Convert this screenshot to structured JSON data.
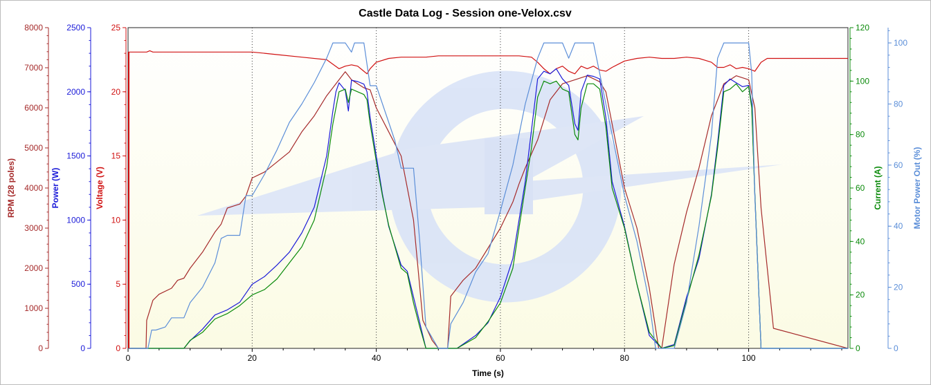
{
  "chart_data": {
    "type": "line",
    "title": "Castle Data Log - Session one-Velox.csv",
    "xlabel": "Time (s)",
    "xlim": [
      0,
      116
    ],
    "xticks": [
      0,
      20,
      40,
      60,
      80,
      100
    ],
    "grid": "vertical dotted",
    "colors": {
      "rpm": "#a52a2a",
      "power": "#1a1ad8",
      "voltage": "#d01010",
      "current": "#0a8a0a",
      "motor_out": "#5b8ed8",
      "plot_bg": "#fbfbe4"
    },
    "axes": [
      {
        "key": "rpm",
        "label": "RPM (28 poles)",
        "side": "left",
        "lim": [
          0,
          8000
        ],
        "ticks": [
          0,
          1000,
          2000,
          3000,
          4000,
          5000,
          6000,
          7000,
          8000
        ]
      },
      {
        "key": "power",
        "label": "Power (W)",
        "side": "left",
        "lim": [
          0,
          2500
        ],
        "ticks": [
          0,
          500,
          1000,
          1500,
          2000,
          2500
        ]
      },
      {
        "key": "voltage",
        "label": "Voltage (V)",
        "side": "left",
        "lim": [
          0,
          25
        ],
        "ticks": [
          0,
          5,
          10,
          15,
          20,
          25
        ]
      },
      {
        "key": "current",
        "label": "Current (A)",
        "side": "right",
        "lim": [
          0,
          120
        ],
        "ticks": [
          0,
          20,
          40,
          60,
          80,
          100,
          120
        ]
      },
      {
        "key": "motor_out",
        "label": "Motor Power Out (%)",
        "side": "right",
        "lim": [
          0,
          105
        ],
        "ticks": [
          0,
          20,
          40,
          60,
          80,
          100
        ]
      }
    ],
    "series": [
      {
        "key": "voltage",
        "axis": "voltage",
        "x": [
          0,
          3,
          3.5,
          4,
          10,
          20,
          22,
          24,
          28,
          32,
          34,
          35,
          36,
          37,
          38,
          38.5,
          39,
          40,
          42,
          44,
          46,
          48,
          50,
          55,
          60,
          63,
          65,
          66,
          67,
          68,
          69,
          70,
          71,
          72,
          73,
          74,
          75,
          76,
          77,
          78,
          80,
          82,
          84,
          86,
          88,
          90,
          92,
          94,
          95,
          96,
          97,
          98,
          99,
          100,
          101,
          102,
          103,
          104,
          106,
          110,
          116
        ],
        "y": [
          23.1,
          23.1,
          23.2,
          23.1,
          23.1,
          23.1,
          23.0,
          22.9,
          22.7,
          22.5,
          21.8,
          22.0,
          22.1,
          22.0,
          21.6,
          21.4,
          21.8,
          22.3,
          22.6,
          22.7,
          22.7,
          22.7,
          22.8,
          22.8,
          22.8,
          22.8,
          22.7,
          22.3,
          21.8,
          21.4,
          21.8,
          22.0,
          21.6,
          21.4,
          22.0,
          21.8,
          22.0,
          21.7,
          21.6,
          21.9,
          22.4,
          22.6,
          22.7,
          22.6,
          22.6,
          22.7,
          22.6,
          22.3,
          21.9,
          21.9,
          22.1,
          21.8,
          21.9,
          21.8,
          21.6,
          22.3,
          22.6,
          22.6,
          22.6,
          22.6,
          22.6
        ]
      },
      {
        "key": "rpm",
        "axis": "rpm",
        "x": [
          0,
          2.9,
          3.0,
          4.0,
          5.0,
          7.0,
          8.0,
          9.0,
          10.0,
          12.0,
          14.0,
          15.0,
          16.0,
          17.0,
          18.0,
          19.0,
          20.0,
          22.0,
          24.0,
          26.0,
          28.0,
          30.0,
          32.0,
          34.0,
          35.0,
          36.0,
          37.0,
          38.0,
          39.0,
          40.0,
          42.0,
          44.0,
          46.0,
          47.5,
          49.0,
          50.0,
          51.5,
          52.0,
          54.0,
          56.0,
          58.0,
          60.0,
          62.0,
          63.0,
          64.0,
          66.0,
          68.0,
          70.0,
          72.0,
          74.0,
          76.0,
          77.0,
          78.0,
          80.0,
          82.0,
          84.0,
          85.5,
          86.0,
          88.0,
          90.0,
          92.0,
          94.0,
          96.0,
          98.0,
          100.0,
          101.0,
          102.0,
          104.0,
          116.0
        ],
        "y": [
          0,
          0,
          700,
          1200,
          1350,
          1500,
          1700,
          1750,
          2000,
          2400,
          2900,
          3100,
          3500,
          3550,
          3600,
          3800,
          4250,
          4400,
          4650,
          4900,
          5400,
          5800,
          6300,
          6700,
          6900,
          6700,
          6600,
          6500,
          6450,
          6000,
          5400,
          4800,
          3200,
          700,
          200,
          0,
          0,
          1300,
          1700,
          2000,
          2500,
          3000,
          3650,
          4100,
          4500,
          5200,
          6200,
          6600,
          6700,
          6800,
          6650,
          6400,
          5600,
          4000,
          3000,
          1500,
          0,
          0,
          2100,
          3400,
          4500,
          5800,
          6600,
          6800,
          6700,
          6000,
          3500,
          500,
          0
        ]
      },
      {
        "key": "power",
        "axis": "power",
        "x": [
          0,
          9,
          10,
          12,
          14,
          16,
          18,
          20,
          22,
          24,
          26,
          28,
          30,
          32,
          33,
          33.5,
          34,
          35,
          35.5,
          36,
          37,
          38,
          38.5,
          39,
          40,
          41,
          42,
          44,
          45,
          46,
          47,
          48,
          50,
          53,
          56,
          58,
          60,
          62,
          63,
          64,
          65,
          66,
          67,
          68,
          69,
          70,
          71,
          72,
          72.5,
          73,
          74,
          75,
          76,
          77,
          78,
          80,
          82,
          84,
          86,
          88,
          90,
          92,
          94,
          95,
          96,
          97,
          98,
          99,
          100,
          100.5,
          101,
          102,
          103,
          116
        ],
        "y": [
          0,
          0,
          60,
          150,
          260,
          300,
          360,
          500,
          560,
          650,
          750,
          900,
          1100,
          1500,
          1850,
          2000,
          2070,
          2010,
          1850,
          2090,
          2080,
          2060,
          2000,
          1800,
          1500,
          1200,
          950,
          650,
          600,
          400,
          200,
          0,
          0,
          0,
          100,
          200,
          400,
          700,
          1000,
          1300,
          1700,
          2100,
          2160,
          2140,
          2180,
          2100,
          2050,
          1750,
          1700,
          2000,
          2130,
          2120,
          2100,
          1800,
          1300,
          950,
          500,
          100,
          0,
          30,
          400,
          700,
          1200,
          1600,
          2050,
          2100,
          2070,
          2040,
          2050,
          1900,
          1200,
          0,
          0,
          0
        ]
      },
      {
        "key": "current",
        "axis": "current",
        "x": [
          0,
          9,
          10,
          12,
          14,
          16,
          18,
          20,
          22,
          24,
          26,
          28,
          30,
          32,
          33,
          34,
          35,
          35.5,
          36,
          37,
          38,
          38.5,
          39,
          40,
          41,
          42,
          44,
          45,
          46,
          47,
          48,
          50,
          53,
          56,
          58,
          60,
          62,
          63,
          64,
          65,
          66,
          67,
          68,
          69,
          70,
          71,
          72,
          72.5,
          73,
          74,
          75,
          76,
          77,
          78,
          80,
          82,
          84,
          86,
          88,
          90,
          92,
          94,
          95,
          96,
          97,
          98,
          99,
          100,
          100.5,
          101,
          102,
          116
        ],
        "y": [
          0,
          0,
          3,
          6,
          11,
          13,
          16,
          20,
          22,
          26,
          32,
          38,
          48,
          68,
          84,
          96,
          97,
          92,
          97,
          96,
          95,
          93,
          84,
          70,
          57,
          46,
          30,
          28,
          17,
          8,
          0,
          0,
          0,
          4,
          10,
          17,
          30,
          45,
          60,
          75,
          94,
          100,
          99,
          100,
          97,
          96,
          80,
          78,
          90,
          99,
          99,
          97,
          83,
          60,
          45,
          24,
          6,
          0,
          1,
          18,
          35,
          57,
          75,
          96,
          97,
          99,
          96,
          98,
          90,
          58,
          0,
          0
        ]
      },
      {
        "key": "motor_out",
        "axis": "motor_out",
        "x": [
          0,
          3.2,
          3.8,
          4.5,
          6,
          7,
          8,
          9,
          10,
          12,
          14,
          15,
          16,
          18,
          19,
          20,
          22,
          24,
          26,
          28,
          30,
          32,
          33,
          34,
          35,
          36,
          36.5,
          37,
          38,
          39,
          40,
          42,
          43,
          44,
          45,
          46,
          47,
          48,
          50,
          51.5,
          52,
          54,
          56,
          58,
          60,
          62,
          64,
          66,
          67,
          68,
          70,
          71,
          72,
          74,
          75,
          76,
          77,
          78,
          80,
          82,
          84,
          85,
          86,
          88,
          90,
          92,
          94,
          95,
          96,
          97,
          98,
          99,
          100,
          100.5,
          101,
          102,
          103,
          116
        ],
        "y": [
          0,
          0,
          6,
          6,
          7,
          10,
          10,
          10,
          15,
          20,
          28,
          36,
          37,
          37,
          50,
          50,
          57,
          65,
          74,
          80,
          87,
          95,
          100,
          100,
          100,
          97,
          100,
          100,
          100,
          86,
          86,
          74,
          68,
          59,
          59,
          59,
          35,
          7,
          0,
          0,
          8,
          15,
          25,
          31,
          45,
          60,
          80,
          95,
          100,
          100,
          100,
          95,
          100,
          100,
          100,
          90,
          80,
          70,
          50,
          35,
          15,
          0,
          0,
          0,
          15,
          40,
          70,
          95,
          100,
          100,
          100,
          100,
          100,
          90,
          50,
          0,
          0,
          0
        ]
      }
    ]
  }
}
